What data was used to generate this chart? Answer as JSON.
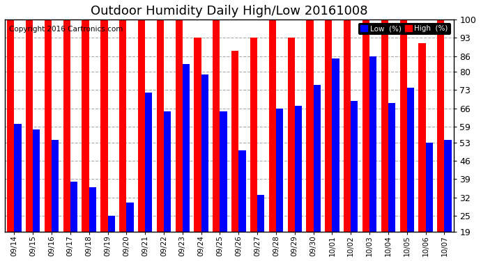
{
  "title": "Outdoor Humidity Daily High/Low 20161008",
  "copyright": "Copyright 2016 Cartronics.com",
  "categories": [
    "09/14",
    "09/15",
    "09/16",
    "09/17",
    "09/18",
    "09/19",
    "09/20",
    "09/21",
    "09/22",
    "09/23",
    "09/24",
    "09/25",
    "09/26",
    "09/27",
    "09/28",
    "09/29",
    "09/30",
    "10/01",
    "10/02",
    "10/03",
    "10/04",
    "10/05",
    "10/06",
    "10/07"
  ],
  "high": [
    100,
    100,
    100,
    100,
    100,
    100,
    100,
    100,
    100,
    100,
    93,
    100,
    88,
    93,
    100,
    93,
    100,
    100,
    100,
    100,
    100,
    100,
    91,
    100
  ],
  "low": [
    60,
    58,
    54,
    38,
    36,
    25,
    30,
    72,
    65,
    83,
    79,
    65,
    50,
    33,
    66,
    67,
    75,
    85,
    69,
    86,
    68,
    74,
    53,
    54
  ],
  "high_color": "#ff0000",
  "low_color": "#0000ff",
  "bg_color": "#ffffff",
  "yticks": [
    19,
    25,
    32,
    39,
    46,
    53,
    59,
    66,
    73,
    80,
    86,
    93,
    100
  ],
  "ymin": 19,
  "ymax": 100,
  "legend_low_label": "Low  (%)",
  "legend_high_label": "High  (%)",
  "title_fontsize": 13,
  "copyright_fontsize": 7.5,
  "bar_width": 0.38
}
